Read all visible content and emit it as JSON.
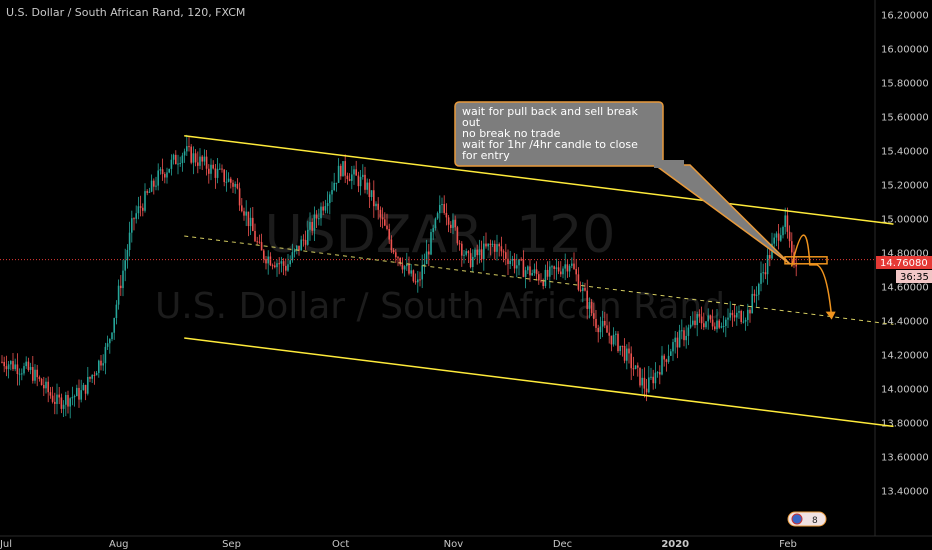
{
  "header": {
    "title": "U.S. Dollar / South African Rand, 120, FXCM"
  },
  "watermark": {
    "symbol": "USDZAR, 120",
    "name": "U.S. Dollar / South African Rand"
  },
  "annotation": {
    "lines": [
      "wait for pull back and sell break",
      "out",
      "no break no trade",
      "wait for 1hr /4hr candle to close",
      "for entry"
    ]
  },
  "price_tag": {
    "value": "14.76080",
    "timer": "36:35"
  },
  "chart_badge": {
    "text": "8"
  },
  "colors": {
    "background": "#000000",
    "up_candle": "#26a69a",
    "down_candle": "#ef5350",
    "channel_line": "#ffeb3b",
    "midline": "#d4cc60",
    "arrow": "#f0941e",
    "note_fill": "#7d7d7d",
    "note_border": "#e89a3c",
    "price_line": "#e53935"
  },
  "chart_data": {
    "type": "candlestick",
    "title": "U.S. Dollar / South African Rand, 120, FXCM",
    "ylim": [
      13.2,
      16.3
    ],
    "y_ticks": [
      "16.20000",
      "16.00000",
      "15.80000",
      "15.60000",
      "15.40000",
      "15.20000",
      "15.00000",
      "14.80000",
      "14.60000",
      "14.40000",
      "14.20000",
      "14.00000",
      "13.80000",
      "13.60000",
      "13.40000"
    ],
    "x_ticks": [
      {
        "label": "Jul",
        "bold": false
      },
      {
        "label": "Aug",
        "bold": false
      },
      {
        "label": "Sep",
        "bold": false
      },
      {
        "label": "Oct",
        "bold": false
      },
      {
        "label": "Nov",
        "bold": false
      },
      {
        "label": "Dec",
        "bold": false
      },
      {
        "label": "2020",
        "bold": true
      },
      {
        "label": "Jan",
        "bold": false
      },
      {
        "label": "Feb",
        "bold": false
      }
    ],
    "last_price": 14.7608,
    "price_path": [
      {
        "date": "2019-07-01",
        "price": 14.16
      },
      {
        "date": "2019-07-08",
        "price": 14.1
      },
      {
        "date": "2019-07-15",
        "price": 13.92
      },
      {
        "date": "2019-07-22",
        "price": 13.98
      },
      {
        "date": "2019-07-29",
        "price": 14.25
      },
      {
        "date": "2019-08-05",
        "price": 15.0
      },
      {
        "date": "2019-08-12",
        "price": 15.25
      },
      {
        "date": "2019-08-19",
        "price": 15.4
      },
      {
        "date": "2019-08-26",
        "price": 15.3
      },
      {
        "date": "2019-09-02",
        "price": 15.2
      },
      {
        "date": "2019-09-09",
        "price": 14.8
      },
      {
        "date": "2019-09-16",
        "price": 14.72
      },
      {
        "date": "2019-09-23",
        "price": 14.95
      },
      {
        "date": "2019-10-01",
        "price": 15.3
      },
      {
        "date": "2019-10-08",
        "price": 15.2
      },
      {
        "date": "2019-10-15",
        "price": 14.85
      },
      {
        "date": "2019-10-22",
        "price": 14.6
      },
      {
        "date": "2019-10-29",
        "price": 15.1
      },
      {
        "date": "2019-11-05",
        "price": 14.75
      },
      {
        "date": "2019-11-12",
        "price": 14.85
      },
      {
        "date": "2019-11-19",
        "price": 14.72
      },
      {
        "date": "2019-11-26",
        "price": 14.65
      },
      {
        "date": "2019-12-03",
        "price": 14.75
      },
      {
        "date": "2019-12-10",
        "price": 14.4
      },
      {
        "date": "2019-12-17",
        "price": 14.25
      },
      {
        "date": "2019-12-24",
        "price": 14.0
      },
      {
        "date": "2019-12-31",
        "price": 14.25
      },
      {
        "date": "2020-01-07",
        "price": 14.4
      },
      {
        "date": "2020-01-14",
        "price": 14.4
      },
      {
        "date": "2020-01-21",
        "price": 14.45
      },
      {
        "date": "2020-01-28",
        "price": 14.85
      },
      {
        "date": "2020-01-31",
        "price": 15.0
      },
      {
        "date": "2020-02-02",
        "price": 14.76
      }
    ],
    "drawings": {
      "upper_channel": [
        {
          "date": "2019-08-19",
          "price": 15.49
        },
        {
          "date": "2020-03-01",
          "price": 14.97
        }
      ],
      "lower_channel": [
        {
          "date": "2019-08-19",
          "price": 14.3
        },
        {
          "date": "2020-03-01",
          "price": 13.78
        }
      ],
      "midline": [
        {
          "date": "2019-08-19",
          "price": 14.9
        },
        {
          "date": "2020-03-01",
          "price": 14.38
        }
      ],
      "projection": [
        {
          "date": "2020-02-02",
          "price": 14.72
        },
        {
          "date": "2020-02-06",
          "price": 14.92
        },
        {
          "date": "2020-02-07",
          "price": 14.73
        },
        {
          "date": "2020-02-09",
          "price": 14.73
        },
        {
          "date": "2020-02-13",
          "price": 14.42
        }
      ]
    }
  }
}
